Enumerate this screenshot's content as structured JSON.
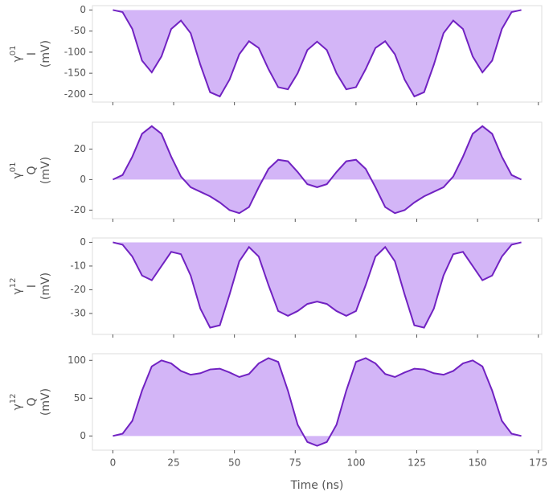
{
  "chart_data": [
    {
      "type": "area",
      "ylabel": {
        "symbol": "γ",
        "superscript": "01",
        "component": "I",
        "unit": "(mV)"
      },
      "x": [
        0,
        4,
        8,
        12,
        16,
        20,
        24,
        28,
        32,
        36,
        40,
        44,
        48,
        52,
        56,
        60,
        64,
        68,
        72,
        76,
        80,
        84,
        88,
        92,
        96,
        100,
        104,
        108,
        112,
        116,
        120,
        124,
        128,
        132,
        136,
        140,
        144,
        148,
        152,
        156,
        160,
        164,
        168
      ],
      "values": [
        0,
        -5,
        -45,
        -120,
        -148,
        -110,
        -45,
        -25,
        -55,
        -130,
        -195,
        -205,
        -165,
        -105,
        -74,
        -90,
        -140,
        -183,
        -188,
        -150,
        -95,
        -75,
        -95,
        -150,
        -188,
        -183,
        -140,
        -90,
        -74,
        -105,
        -165,
        -205,
        -195,
        -130,
        -55,
        -25,
        -45,
        -110,
        -148,
        -120,
        -45,
        -5,
        0
      ],
      "color": "#7122c2",
      "fill_color": "#d3b5f7",
      "xlim": [
        -8.4,
        176.4
      ],
      "ylim": [
        -218.4,
        10.4
      ],
      "yticks": [
        -200,
        -150,
        -100,
        -50,
        0
      ]
    },
    {
      "type": "area",
      "ylabel": {
        "symbol": "γ",
        "superscript": "01",
        "component": "Q",
        "unit": "(mV)"
      },
      "x": [
        0,
        4,
        8,
        12,
        16,
        20,
        24,
        28,
        32,
        36,
        40,
        44,
        48,
        52,
        56,
        60,
        64,
        68,
        72,
        76,
        80,
        84,
        88,
        92,
        96,
        100,
        104,
        108,
        112,
        116,
        120,
        124,
        128,
        132,
        136,
        140,
        144,
        148,
        152,
        156,
        160,
        164,
        168
      ],
      "values": [
        0,
        3,
        15,
        30,
        35,
        30,
        15,
        2,
        -5,
        -8,
        -11,
        -15,
        -20,
        -22,
        -18,
        -5,
        7,
        13,
        12,
        5,
        -3,
        -5,
        -3,
        5,
        12,
        13,
        7,
        -5,
        -18,
        -22,
        -20,
        -15,
        -11,
        -8,
        -5,
        2,
        15,
        30,
        35,
        30,
        15,
        3,
        0
      ],
      "color": "#7122c2",
      "fill_color": "#d3b5f7",
      "xlim": [
        -8.4,
        176.4
      ],
      "ylim": [
        -25.6,
        37.6
      ],
      "yticks": [
        -20,
        0,
        20
      ]
    },
    {
      "type": "area",
      "ylabel": {
        "symbol": "γ",
        "superscript": "12",
        "component": "I",
        "unit": "(mV)"
      },
      "x": [
        0,
        4,
        8,
        12,
        16,
        20,
        24,
        28,
        32,
        36,
        40,
        44,
        48,
        52,
        56,
        60,
        64,
        68,
        72,
        76,
        80,
        84,
        88,
        92,
        96,
        100,
        104,
        108,
        112,
        116,
        120,
        124,
        128,
        132,
        136,
        140,
        144,
        148,
        152,
        156,
        160,
        164,
        168
      ],
      "values": [
        0,
        -1,
        -6,
        -14,
        -16,
        -10,
        -4,
        -5,
        -14,
        -28,
        -36,
        -35,
        -22,
        -8,
        -2,
        -6,
        -18,
        -29,
        -31,
        -29,
        -26,
        -25,
        -26,
        -29,
        -31,
        -29,
        -18,
        -6,
        -2,
        -8,
        -22,
        -35,
        -36,
        -28,
        -14,
        -5,
        -4,
        -10,
        -16,
        -14,
        -6,
        -1,
        0
      ],
      "color": "#7122c2",
      "fill_color": "#d3b5f7",
      "xlim": [
        -8.4,
        176.4
      ],
      "ylim": [
        -38.85,
        1.85
      ],
      "yticks": [
        -30,
        -20,
        -10,
        0
      ]
    },
    {
      "type": "area",
      "ylabel": {
        "symbol": "γ",
        "superscript": "12",
        "component": "Q",
        "unit": "(mV)"
      },
      "x": [
        0,
        4,
        8,
        12,
        16,
        20,
        24,
        28,
        32,
        36,
        40,
        44,
        48,
        52,
        56,
        60,
        64,
        68,
        72,
        76,
        80,
        84,
        88,
        92,
        96,
        100,
        104,
        108,
        112,
        116,
        120,
        124,
        128,
        132,
        136,
        140,
        144,
        148,
        152,
        156,
        160,
        164,
        168
      ],
      "values": [
        0,
        3,
        20,
        60,
        92,
        100,
        96,
        86,
        81,
        83,
        88,
        89,
        84,
        78,
        82,
        96,
        103,
        98,
        60,
        15,
        -8,
        -13,
        -8,
        15,
        60,
        98,
        103,
        96,
        82,
        78,
        84,
        89,
        88,
        83,
        81,
        86,
        96,
        100,
        92,
        60,
        20,
        3,
        0
      ],
      "color": "#7122c2",
      "fill_color": "#d3b5f7",
      "xlim": [
        -8.4,
        176.4
      ],
      "ylim": [
        -18.8,
        108.8
      ],
      "yticks": [
        0,
        50,
        100
      ],
      "xticks": [
        0,
        25,
        50,
        75,
        100,
        125,
        150,
        175
      ],
      "xlabel": "Time (ns)"
    }
  ]
}
